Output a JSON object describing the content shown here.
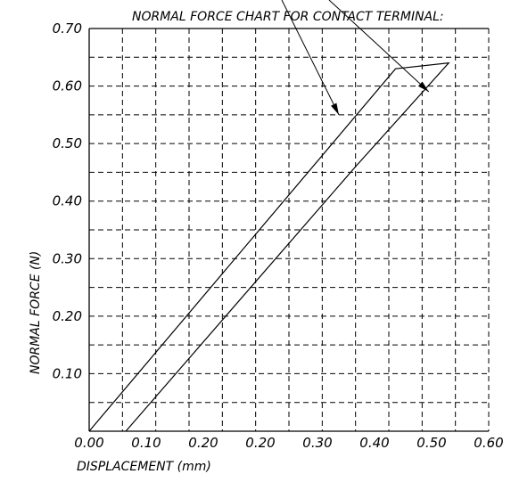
{
  "chart_data": {
    "type": "line",
    "title": "NORMAL FORCE CHART FOR CONTACT TERMINAL:",
    "xlabel": "DISPLACEMENT (mm)",
    "ylabel": "NORMAL FORCE (N)",
    "xlim": [
      0.0,
      0.6
    ],
    "ylim": [
      0.0,
      0.7
    ],
    "x_tick_labels": [
      "0.00",
      "0.10",
      "0.20",
      "0.20",
      "0.30",
      "0.40",
      "0.50",
      "0.60"
    ],
    "y_tick_labels": [
      "0.10",
      "0.20",
      "0.30",
      "0.40",
      "0.50",
      "0.60",
      "0.70"
    ],
    "grid": "dashed",
    "series": [
      {
        "values": [
          {
            "x": 0.0,
            "y": 0.0
          },
          {
            "x": 0.46,
            "y": 0.63
          },
          {
            "x": 0.54,
            "y": 0.64
          },
          {
            "x": 0.4,
            "y": 0.46
          },
          {
            "x": 0.055,
            "y": 0.0
          }
        ]
      }
    ],
    "annotations": [
      {
        "type": "leader-arrow",
        "target": {
          "x": 0.375,
          "y": 0.55
        }
      },
      {
        "type": "leader-arrow",
        "target": {
          "x": 0.51,
          "y": 0.59
        }
      }
    ]
  }
}
